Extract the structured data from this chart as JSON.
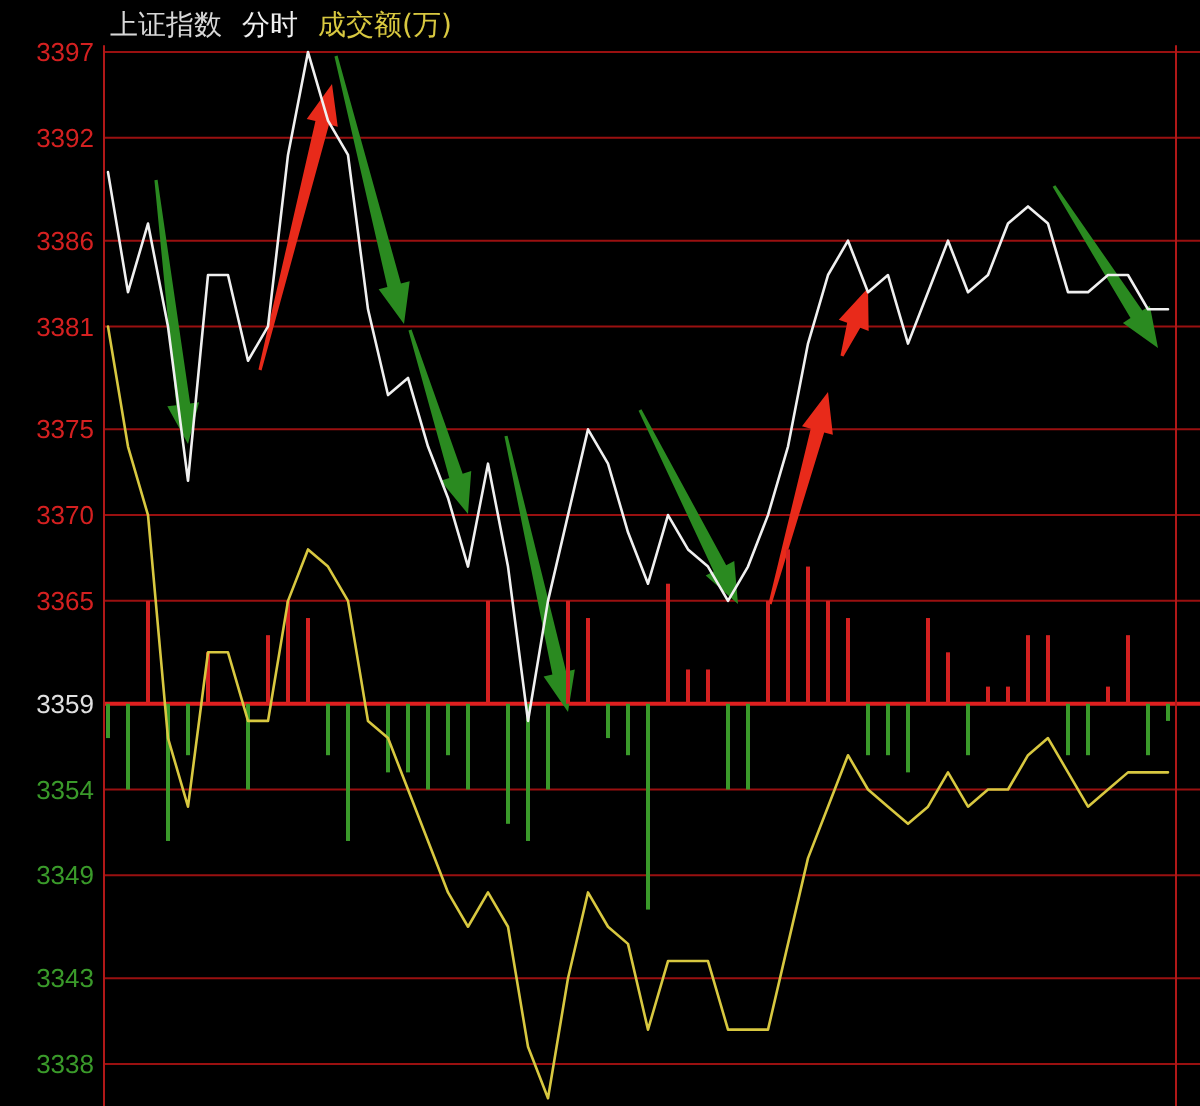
{
  "chart_data": {
    "type": "line",
    "title": "分时",
    "legend": "top left",
    "grid": "y",
    "categories": [
      null,
      null,
      null,
      null,
      null,
      null,
      null,
      null,
      null,
      null,
      null,
      null,
      null,
      null,
      null,
      null,
      null,
      null,
      null,
      null,
      null,
      null,
      null,
      null,
      null,
      null,
      null,
      null,
      null,
      null,
      null,
      null,
      null,
      null,
      null,
      null,
      null,
      null,
      null,
      null,
      null,
      null,
      null,
      null,
      null,
      null,
      null,
      null,
      null,
      null,
      null,
      null,
      null,
      null
    ],
    "ylim": [
      3335.5,
      3397.4
    ],
    "ref_lines": [
      {
        "axis": "y",
        "value": 3359,
        "color": "#e02020"
      }
    ],
    "yticks": [
      3338,
      3343,
      3349,
      3354,
      3359,
      3365,
      3370,
      3375,
      3381,
      3386,
      3392,
      3397
    ],
    "series": [
      {
        "name": "上证指数",
        "color": "#f0f0f0",
        "values": [
          3390,
          3383,
          3387,
          3381,
          3372,
          3384,
          3384,
          3379,
          3381,
          3391,
          3397,
          3393,
          3391,
          3382,
          3377,
          3378,
          3374,
          3371,
          3367,
          3373,
          3367,
          3358,
          3365,
          3370,
          3375,
          3373,
          3369,
          3366,
          3370,
          3368,
          3367,
          3365,
          3367,
          3370,
          3374,
          3380,
          3384,
          3386,
          3383,
          3384,
          3380,
          3383,
          3386,
          3383,
          3384,
          3387,
          3388,
          3387,
          3383,
          3383,
          3384,
          3384,
          3382,
          3382
        ]
      },
      {
        "name": "成交额(万)",
        "color": "#d8c840",
        "values": [
          3381,
          3374,
          3370,
          3357,
          3353,
          3362,
          3362,
          3358,
          3358,
          3365,
          3368,
          3367,
          3365,
          3358,
          3357,
          3354,
          3351,
          3348,
          3346,
          3348,
          3346,
          3339,
          3336,
          3343,
          3348,
          3346,
          3345,
          3340,
          3344,
          3344,
          3344,
          3340,
          3340,
          3340,
          3345,
          3350,
          3353,
          3356,
          3354,
          3353,
          3352,
          3353,
          3355,
          3353,
          3354,
          3354,
          3356,
          3357,
          3355,
          3353,
          3354,
          3355,
          3355,
          3355
        ]
      },
      {
        "type": "bar",
        "base": [
          3359,
          3359,
          3359,
          3359,
          3359,
          3359,
          null,
          3359,
          3359,
          3359,
          3359,
          3359,
          3359,
          null,
          3359,
          3359,
          3359,
          3359,
          3359,
          3359,
          3359,
          3359,
          3359,
          3359,
          3359,
          3359,
          3359,
          3359,
          3359,
          3359,
          3359,
          3359,
          3359,
          3359,
          3359,
          3359,
          3359,
          3359,
          3359,
          3359,
          3359,
          3359,
          3359,
          3359,
          3359,
          3359,
          3359,
          3359,
          3359,
          3359,
          3359,
          3359,
          3359,
          3359
        ],
        "values": [
          -2,
          -5,
          6,
          -8,
          -3,
          3,
          null,
          -5,
          4,
          6,
          5,
          -3,
          -8,
          null,
          -4,
          -4,
          -5,
          -3,
          -5,
          6,
          -7,
          -8,
          -5,
          6,
          5,
          -2,
          -3,
          -12,
          7,
          2,
          2,
          -5,
          -5,
          6,
          9,
          8,
          6,
          5,
          -3,
          -3,
          -4,
          5,
          3,
          -3,
          1,
          1,
          4,
          4,
          -3,
          -3,
          1,
          4,
          -3,
          -1
        ],
        "colors": [
          "#3a9a2a",
          "#3a9a2a",
          "#d42020",
          "#3a9a2a",
          "#3a9a2a",
          "#d42020",
          null,
          "#3a9a2a",
          "#d42020",
          "#d42020",
          "#d42020",
          "#3a9a2a",
          "#3a9a2a",
          null,
          "#3a9a2a",
          "#3a9a2a",
          "#3a9a2a",
          "#3a9a2a",
          "#3a9a2a",
          "#d42020",
          "#3a9a2a",
          "#3a9a2a",
          "#3a9a2a",
          "#d42020",
          "#d42020",
          "#3a9a2a",
          "#3a9a2a",
          "#3a9a2a",
          "#d42020",
          "#d42020",
          "#d42020",
          "#3a9a2a",
          "#3a9a2a",
          "#d42020",
          "#d42020",
          "#d42020",
          "#d42020",
          "#d42020",
          "#3a9a2a",
          "#3a9a2a",
          "#3a9a2a",
          "#d42020",
          "#d42020",
          "#3a9a2a",
          "#d42020",
          "#d42020",
          "#d42020",
          "#d42020",
          "#3a9a2a",
          "#3a9a2a",
          "#d42020",
          "#d42020",
          "#3a9a2a",
          "#3a9a2a"
        ]
      }
    ]
  }
}
